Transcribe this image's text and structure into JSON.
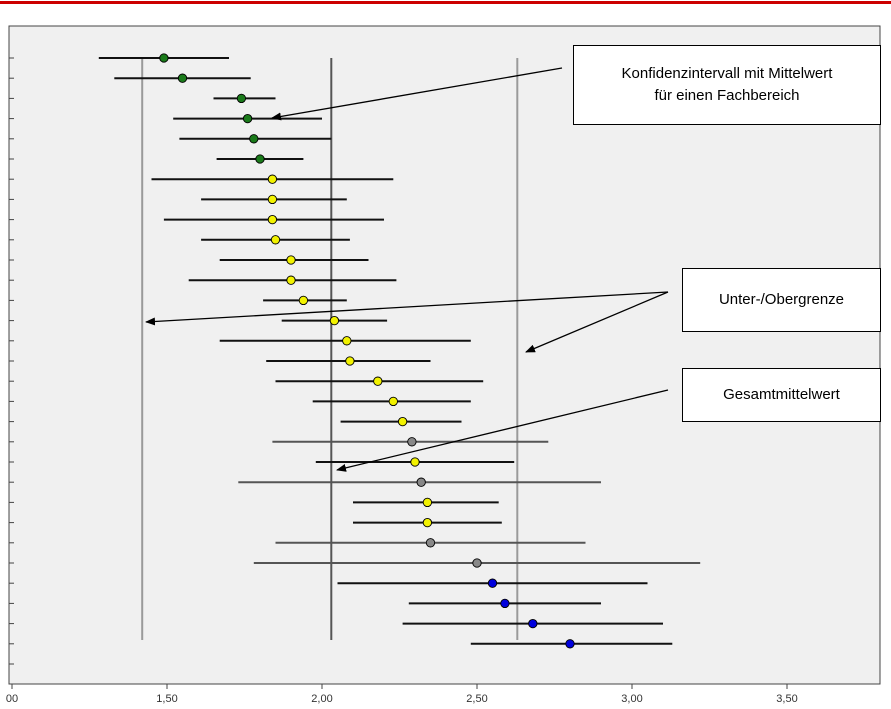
{
  "chart_data": {
    "type": "scatter",
    "title": "",
    "xlabel": "",
    "ylabel": "",
    "xlim": [
      1.0,
      3.8
    ],
    "x_ticks": [
      {
        "value": 1.0,
        "label": "00"
      },
      {
        "value": 1.5,
        "label": "1,50"
      },
      {
        "value": 2.0,
        "label": "2,00"
      },
      {
        "value": 2.5,
        "label": "2,50"
      },
      {
        "value": 3.0,
        "label": "3,00"
      },
      {
        "value": 3.5,
        "label": "3,50"
      }
    ],
    "grid": false,
    "reference_lines": [
      {
        "name": "Untergrenze",
        "value": 1.42,
        "color": "#9a9a9a"
      },
      {
        "name": "Gesamtmittelwert",
        "value": 2.03,
        "color": "#555555"
      },
      {
        "name": "Obergrenze",
        "value": 2.63,
        "color": "#9a9a9a"
      }
    ],
    "colors": {
      "green": "#1a7a1a",
      "yellow": "#f2f200",
      "gray": "#888888",
      "blue": "#0000dd"
    },
    "intervals": [
      {
        "mean": 1.49,
        "low": 1.28,
        "high": 1.7,
        "color": "green"
      },
      {
        "mean": 1.55,
        "low": 1.33,
        "high": 1.77,
        "color": "green"
      },
      {
        "mean": 1.74,
        "low": 1.65,
        "high": 1.85,
        "color": "green"
      },
      {
        "mean": 1.76,
        "low": 1.52,
        "high": 2.0,
        "color": "green"
      },
      {
        "mean": 1.78,
        "low": 1.54,
        "high": 2.03,
        "color": "green"
      },
      {
        "mean": 1.8,
        "low": 1.66,
        "high": 1.94,
        "color": "green"
      },
      {
        "mean": 1.84,
        "low": 1.45,
        "high": 2.23,
        "color": "yellow"
      },
      {
        "mean": 1.84,
        "low": 1.61,
        "high": 2.08,
        "color": "yellow"
      },
      {
        "mean": 1.84,
        "low": 1.49,
        "high": 2.2,
        "color": "yellow"
      },
      {
        "mean": 1.85,
        "low": 1.61,
        "high": 2.09,
        "color": "yellow"
      },
      {
        "mean": 1.9,
        "low": 1.67,
        "high": 2.15,
        "color": "yellow"
      },
      {
        "mean": 1.9,
        "low": 1.57,
        "high": 2.24,
        "color": "yellow"
      },
      {
        "mean": 1.94,
        "low": 1.81,
        "high": 2.08,
        "color": "yellow"
      },
      {
        "mean": 2.04,
        "low": 1.87,
        "high": 2.21,
        "color": "yellow"
      },
      {
        "mean": 2.08,
        "low": 1.67,
        "high": 2.48,
        "color": "yellow"
      },
      {
        "mean": 2.09,
        "low": 1.82,
        "high": 2.35,
        "color": "yellow"
      },
      {
        "mean": 2.18,
        "low": 1.85,
        "high": 2.52,
        "color": "yellow"
      },
      {
        "mean": 2.23,
        "low": 1.97,
        "high": 2.48,
        "color": "yellow"
      },
      {
        "mean": 2.26,
        "low": 2.06,
        "high": 2.45,
        "color": "yellow"
      },
      {
        "mean": 2.29,
        "low": 1.84,
        "high": 2.73,
        "color": "gray"
      },
      {
        "mean": 2.3,
        "low": 1.98,
        "high": 2.62,
        "color": "yellow"
      },
      {
        "mean": 2.32,
        "low": 1.73,
        "high": 2.9,
        "color": "gray"
      },
      {
        "mean": 2.34,
        "low": 2.1,
        "high": 2.57,
        "color": "yellow"
      },
      {
        "mean": 2.34,
        "low": 2.1,
        "high": 2.58,
        "color": "yellow"
      },
      {
        "mean": 2.35,
        "low": 1.85,
        "high": 2.85,
        "color": "gray"
      },
      {
        "mean": 2.5,
        "low": 1.78,
        "high": 3.22,
        "color": "gray"
      },
      {
        "mean": 2.55,
        "low": 2.05,
        "high": 3.05,
        "color": "blue"
      },
      {
        "mean": 2.59,
        "low": 2.28,
        "high": 2.9,
        "color": "blue"
      },
      {
        "mean": 2.68,
        "low": 2.26,
        "high": 3.1,
        "color": "blue"
      },
      {
        "mean": 2.8,
        "low": 2.48,
        "high": 3.13,
        "color": "blue"
      }
    ]
  },
  "callouts": {
    "ci": {
      "line1": "Konfidenzintervall mit Mittelwert",
      "line2": "für einen Fachbereich"
    },
    "bounds": {
      "text": "Unter-/Obergrenze"
    },
    "overall": {
      "text": "Gesamtmittelwert"
    }
  },
  "header_rule_color": "#cc0000"
}
